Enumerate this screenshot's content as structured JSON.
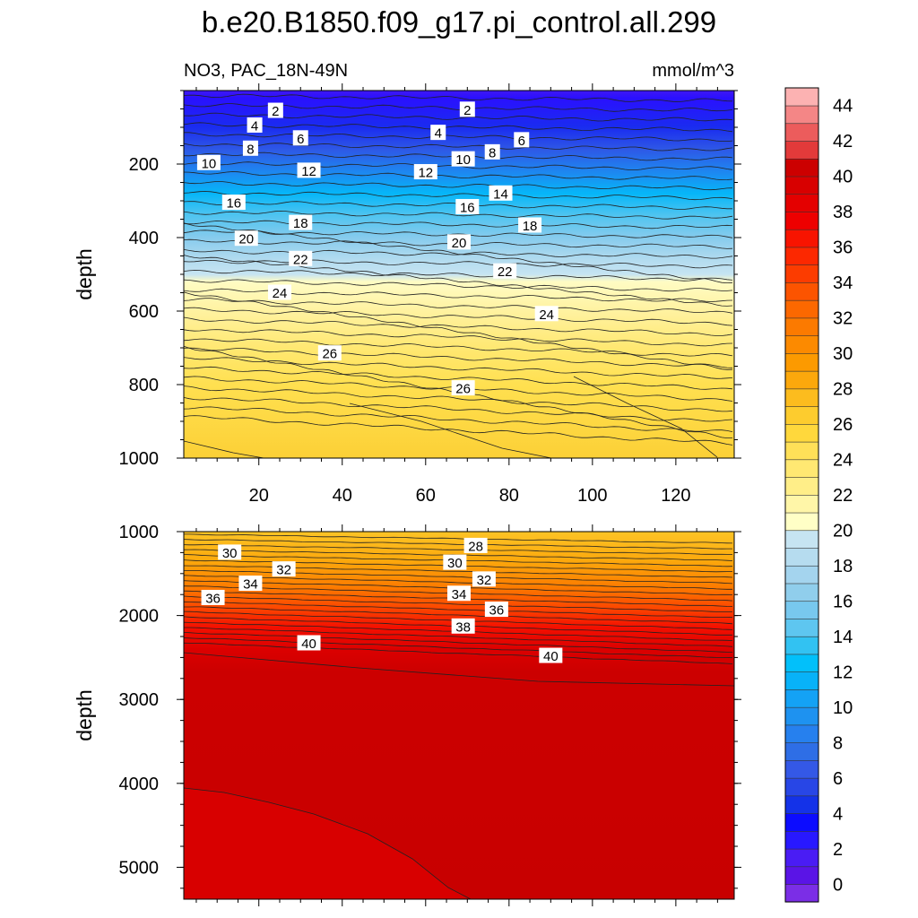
{
  "title": "b.e20.B1850.f09_g17.pi_control.all.299",
  "variable_label": "NO3, PAC_18N-49N",
  "units_label": "mmol/m^3",
  "chart_data": [
    {
      "type": "heatmap",
      "panel": "upper",
      "ylabel": "depth",
      "xlim": [
        2,
        134
      ],
      "ylim": [
        1000,
        0
      ],
      "y_inverted": true,
      "x_ticks": [
        "20",
        "40",
        "60",
        "80",
        "100",
        "120"
      ],
      "y_ticks": [
        "200",
        "400",
        "600",
        "800",
        "1000"
      ],
      "contour_labels": [
        {
          "text": "2",
          "x": 24,
          "y": 55
        },
        {
          "text": "2",
          "x": 70,
          "y": 52
        },
        {
          "text": "4",
          "x": 19,
          "y": 95
        },
        {
          "text": "4",
          "x": 63,
          "y": 115
        },
        {
          "text": "6",
          "x": 30,
          "y": 130
        },
        {
          "text": "6",
          "x": 83,
          "y": 135
        },
        {
          "text": "8",
          "x": 18,
          "y": 158
        },
        {
          "text": "8",
          "x": 76,
          "y": 168
        },
        {
          "text": "10",
          "x": 8,
          "y": 197
        },
        {
          "text": "10",
          "x": 69,
          "y": 187
        },
        {
          "text": "12",
          "x": 32,
          "y": 218
        },
        {
          "text": "12",
          "x": 60,
          "y": 222
        },
        {
          "text": "14",
          "x": 78,
          "y": 280
        },
        {
          "text": "16",
          "x": 14,
          "y": 305
        },
        {
          "text": "16",
          "x": 70,
          "y": 317
        },
        {
          "text": "18",
          "x": 30,
          "y": 360
        },
        {
          "text": "18",
          "x": 85,
          "y": 367
        },
        {
          "text": "20",
          "x": 17,
          "y": 403
        },
        {
          "text": "20",
          "x": 68,
          "y": 413
        },
        {
          "text": "22",
          "x": 30,
          "y": 458
        },
        {
          "text": "22",
          "x": 79,
          "y": 492
        },
        {
          "text": "24",
          "x": 25,
          "y": 550
        },
        {
          "text": "24",
          "x": 89,
          "y": 608
        },
        {
          "text": "26",
          "x": 37,
          "y": 715
        },
        {
          "text": "26",
          "x": 69,
          "y": 810
        }
      ]
    },
    {
      "type": "heatmap",
      "panel": "lower",
      "ylabel": "depth",
      "xlim": [
        2,
        134
      ],
      "ylim": [
        5380,
        1000
      ],
      "y_inverted": true,
      "y_ticks": [
        "1000",
        "2000",
        "3000",
        "4000",
        "5000"
      ],
      "contour_labels": [
        {
          "text": "28",
          "x": 72,
          "y": 1170
        },
        {
          "text": "30",
          "x": 13,
          "y": 1250
        },
        {
          "text": "30",
          "x": 67,
          "y": 1370
        },
        {
          "text": "32",
          "x": 26,
          "y": 1450
        },
        {
          "text": "32",
          "x": 74,
          "y": 1570
        },
        {
          "text": "34",
          "x": 18,
          "y": 1620
        },
        {
          "text": "34",
          "x": 68,
          "y": 1740
        },
        {
          "text": "36",
          "x": 9,
          "y": 1790
        },
        {
          "text": "36",
          "x": 77,
          "y": 1930
        },
        {
          "text": "38",
          "x": 69,
          "y": 2130
        },
        {
          "text": "40",
          "x": 32,
          "y": 2330
        },
        {
          "text": "40",
          "x": 90,
          "y": 2480
        }
      ]
    }
  ],
  "colorbar": {
    "tick_labels": [
      "0",
      "2",
      "4",
      "6",
      "8",
      "10",
      "12",
      "14",
      "16",
      "18",
      "20",
      "22",
      "24",
      "26",
      "28",
      "30",
      "32",
      "34",
      "36",
      "38",
      "40",
      "42",
      "44"
    ],
    "colors": [
      "#7b2ee6",
      "#5a14e6",
      "#4a1cf4",
      "#2818ff",
      "#0c0cff",
      "#1432e8",
      "#2846e6",
      "#3458e6",
      "#2e6ee6",
      "#2680ee",
      "#1e92f0",
      "#14a2f5",
      "#08b2f8",
      "#02c0fa",
      "#32c2f2",
      "#5ec6f0",
      "#78c8ee",
      "#90ceec",
      "#a4d4ee",
      "#b6dcef",
      "#c6e4f2",
      "#ffffc6",
      "#fff6a8",
      "#ffee88",
      "#ffe872",
      "#ffe058",
      "#ffd83c",
      "#fdcc2e",
      "#fcbc1e",
      "#fca80c",
      "#fc9a00",
      "#fc8a00",
      "#fc7a00",
      "#fc6800",
      "#fc5400",
      "#fc3c00",
      "#fc2800",
      "#f81400",
      "#ee0000",
      "#e40000",
      "#d80000",
      "#cc0000",
      "#e23a3a",
      "#ec5c5c",
      "#f48686",
      "#fcb2b2"
    ]
  }
}
